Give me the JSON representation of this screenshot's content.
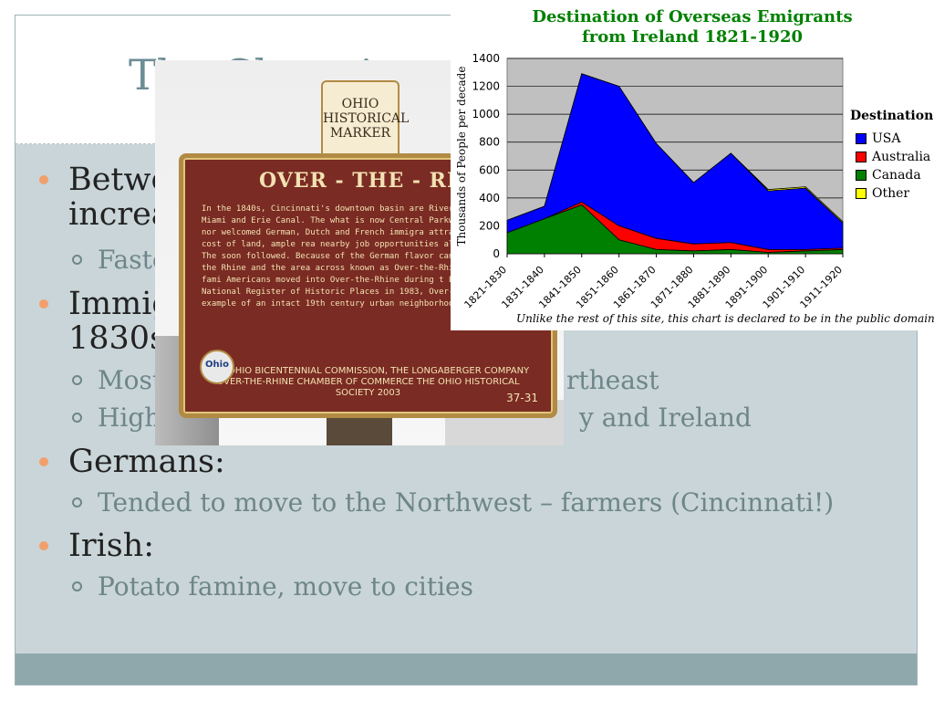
{
  "slide": {
    "title": "The Changing A",
    "bullets": [
      {
        "text": "Betwe",
        "text2": "increa"
      },
      {
        "text": "Immig",
        "text2": "1830s"
      },
      {
        "text": "Germans:"
      },
      {
        "text": "Irish:"
      }
    ],
    "subbullets": [
      {
        "text": "Faste"
      },
      {
        "text": "Most",
        "tail": "rtheast"
      },
      {
        "text": "High",
        "tail": "y and Ireland"
      },
      {
        "text": "Tended to move to the Northwest – farmers (Cincinnati!)"
      },
      {
        "text": "Potato famine, move to cities"
      }
    ]
  },
  "marker_photo": {
    "seal_lines": [
      "OHIO",
      "HISTORICAL",
      "MARKER"
    ],
    "heading": "OVER - THE - RHI",
    "body": "In the 1840s, Cincinnati's downtown basin are River end of the Miami and Erie Canal. The what is now Central Parkway. This area nor welcomed German, Dutch and French immigra attracted by the low cost of land, ample rea nearby job opportunities along the canal. The soon followed. Because of the German flavor canal was dubbed the Rhine and the area across known as Over-the-Rhine. Appalachian fami Americans moved into Over-the-Rhine during t Listed on the National Register of Historic Places in 1983, Over-the- Rhine is an example of an intact 19th century urban neighborhood.",
    "footer": "THE OHIO BICENTENNIAL COMMISSION, THE LONGABERGER COMPANY OVER-THE-RHINE CHAMBER OF COMMERCE THE OHIO HISTORICAL SOCIETY 2003",
    "code": "37-31",
    "badge": "Ohio"
  },
  "chart_image": {
    "title_line1": "Destination of Overseas Emigrants",
    "title_line2": "from Ireland 1821-1920",
    "caption": "Unlike the rest of this site, this chart is declared to be in the public domain.",
    "legend_title": "Destination"
  },
  "chart_data": {
    "type": "area",
    "title": "Destination of Overseas Emigrants from Ireland 1821-1920",
    "xlabel": "",
    "ylabel": "Thousands of People per decade",
    "categories": [
      "1821-1830",
      "1831-1840",
      "1841-1850",
      "1851-1860",
      "1861-1870",
      "1871-1880",
      "1881-1890",
      "1891-1900",
      "1901-1910",
      "1911-1920"
    ],
    "ylim": [
      0,
      1400
    ],
    "yticks": [
      0,
      200,
      400,
      600,
      800,
      1000,
      1200,
      1400
    ],
    "grid": true,
    "legend_placement": "right",
    "series": [
      {
        "name": "USA",
        "color": "#0000ff",
        "values": [
          90,
          90,
          920,
          1000,
          680,
          440,
          640,
          420,
          440,
          180
        ]
      },
      {
        "name": "Australia",
        "color": "#ff0000",
        "values": [
          0,
          0,
          20,
          100,
          80,
          50,
          50,
          20,
          10,
          10
        ]
      },
      {
        "name": "Canada",
        "color": "#008000",
        "values": [
          150,
          250,
          350,
          100,
          30,
          20,
          30,
          10,
          20,
          30
        ]
      },
      {
        "name": "Other",
        "color": "#ffff00",
        "values": [
          0,
          0,
          0,
          0,
          0,
          0,
          0,
          10,
          10,
          10
        ]
      }
    ]
  }
}
